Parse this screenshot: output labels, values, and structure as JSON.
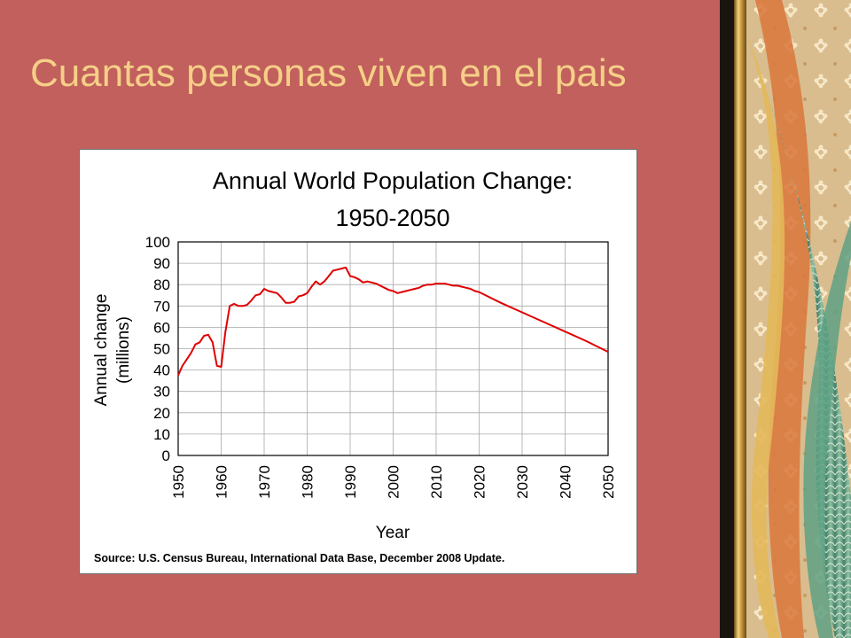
{
  "slide": {
    "title": "Cuantas personas viven en el pais"
  },
  "theme": {
    "background": "#c1605d",
    "title_color": "#f6cf87",
    "line_color": "#e00000"
  },
  "chart_data": {
    "type": "line",
    "title": "Annual World Population Change:",
    "subtitle": "1950-2050",
    "xlabel": "Year",
    "ylabel": "Annual change",
    "ylabel_unit": "(millions)",
    "source": "Source: U.S. Census Bureau, International Data Base, December 2008 Update.",
    "xlim": [
      1950,
      2050
    ],
    "ylim": [
      0,
      100
    ],
    "x_ticks": [
      "1950",
      "1960",
      "1970",
      "1980",
      "1990",
      "2000",
      "2010",
      "2020",
      "2030",
      "2040",
      "2050"
    ],
    "y_ticks": [
      "0",
      "10",
      "20",
      "30",
      "40",
      "50",
      "60",
      "70",
      "80",
      "90",
      "100"
    ],
    "grid": true,
    "legend": "none",
    "series": [
      {
        "x": [
          1950,
          1951,
          1952,
          1953,
          1954,
          1955,
          1956,
          1957,
          1958,
          1959,
          1960,
          1961,
          1962,
          1963,
          1964,
          1965,
          1966,
          1967,
          1968,
          1969,
          1970,
          1971,
          1972,
          1973,
          1974,
          1975,
          1976,
          1977,
          1978,
          1979,
          1980,
          1981,
          1982,
          1983,
          1984,
          1985,
          1986,
          1987,
          1988,
          1989,
          1990,
          1991,
          1992,
          1993,
          1994,
          1995,
          1996,
          1997,
          1998,
          1999,
          2000,
          2001,
          2002,
          2003,
          2004,
          2005,
          2006,
          2007,
          2008,
          2009,
          2010,
          2011,
          2012,
          2013,
          2014,
          2015,
          2016,
          2017,
          2018,
          2019,
          2020,
          2025,
          2030,
          2035,
          2040,
          2045,
          2050
        ],
        "y": [
          37.5,
          42,
          45,
          48,
          52,
          53,
          56,
          56.5,
          53,
          42,
          41.5,
          58,
          70,
          71,
          70,
          70,
          70.5,
          72.5,
          75,
          75.5,
          78,
          77,
          76.5,
          76,
          74,
          71.5,
          71.5,
          72,
          74.5,
          75,
          76,
          79,
          81.5,
          80,
          81.5,
          84,
          86.5,
          87,
          87.5,
          88,
          84,
          83.5,
          82.5,
          81,
          81.5,
          81,
          80.5,
          79.5,
          78.5,
          77.5,
          77,
          76,
          76.5,
          77,
          77.5,
          78,
          78.5,
          79.5,
          80,
          80,
          80.5,
          80.5,
          80.5,
          80,
          79.5,
          79.5,
          79,
          78.5,
          78,
          77,
          76.5,
          71.5,
          67,
          62.5,
          58,
          53.5,
          48.5
        ]
      }
    ]
  }
}
